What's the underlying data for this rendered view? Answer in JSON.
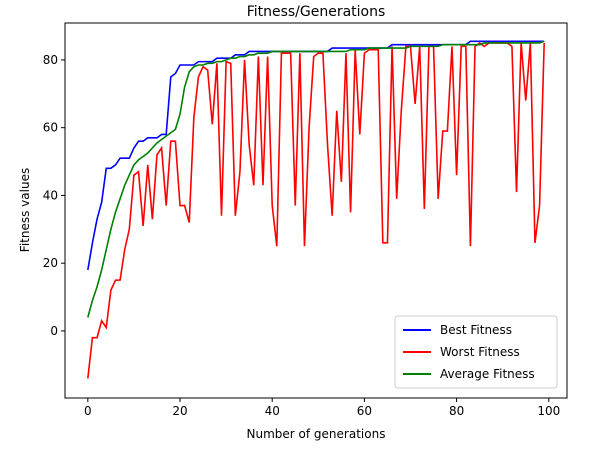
{
  "chart_data": {
    "type": "line",
    "title": "Fitness/Generations",
    "xlabel": "Number of generations",
    "ylabel": "Fitness values",
    "x": [
      0,
      1,
      2,
      3,
      4,
      5,
      6,
      7,
      8,
      9,
      10,
      11,
      12,
      13,
      14,
      15,
      16,
      17,
      18,
      19,
      20,
      21,
      22,
      23,
      24,
      25,
      26,
      27,
      28,
      29,
      30,
      31,
      32,
      33,
      34,
      35,
      36,
      37,
      38,
      39,
      40,
      41,
      42,
      43,
      44,
      45,
      46,
      47,
      48,
      49,
      50,
      51,
      52,
      53,
      54,
      55,
      56,
      57,
      58,
      59,
      60,
      61,
      62,
      63,
      64,
      65,
      66,
      67,
      68,
      69,
      70,
      71,
      72,
      73,
      74,
      75,
      76,
      77,
      78,
      79,
      80,
      81,
      82,
      83,
      84,
      85,
      86,
      87,
      88,
      89,
      90,
      91,
      92,
      93,
      94,
      95,
      96,
      97,
      98,
      99
    ],
    "series": [
      {
        "name": "Best Fitness",
        "color": "#0000ff",
        "values": [
          18,
          26,
          33,
          38,
          48,
          48,
          49,
          51,
          51,
          51,
          54,
          56,
          56,
          57,
          57,
          57,
          58,
          58,
          75,
          76,
          78.5,
          78.5,
          78.5,
          78.5,
          79.5,
          79.5,
          79.5,
          79.5,
          80.5,
          80.5,
          80.5,
          80.5,
          81.5,
          81.5,
          81.5,
          82.5,
          82.5,
          82.5,
          82.5,
          82.5,
          82.5,
          82.5,
          82.5,
          82.5,
          82.5,
          82.5,
          82.5,
          82.5,
          82.5,
          82.5,
          82.5,
          82.5,
          82.5,
          83.5,
          83.5,
          83.5,
          83.5,
          83.5,
          83.5,
          83.5,
          83.5,
          83.5,
          83.5,
          83.5,
          83.5,
          83.5,
          84.5,
          84.5,
          84.5,
          84.5,
          84.5,
          84.5,
          84.5,
          84.5,
          84.5,
          84.5,
          84.5,
          84.5,
          84.5,
          84.5,
          84.5,
          84.5,
          84.5,
          85.5,
          85.5,
          85.5,
          85.5,
          85.5,
          85.5,
          85.5,
          85.5,
          85.5,
          85.5,
          85.5,
          85.5,
          85.5,
          85.5,
          85.5,
          85.5,
          85.5
        ]
      },
      {
        "name": "Worst Fitness",
        "color": "#ff0000",
        "values": [
          -14,
          -2,
          -2,
          3,
          1,
          12,
          15,
          15,
          24,
          30,
          46,
          47,
          31,
          49,
          33,
          52,
          54,
          37,
          56,
          56,
          37,
          37,
          32,
          63,
          75,
          78,
          77,
          61,
          79,
          34,
          79.5,
          79,
          34,
          47,
          80,
          55,
          43,
          81,
          43,
          81,
          37,
          25,
          82,
          82,
          82,
          37,
          82,
          25,
          60,
          81,
          82,
          82,
          55,
          34,
          65,
          44,
          82,
          35,
          83,
          58,
          82,
          83,
          83,
          83,
          26,
          26,
          84,
          39,
          65,
          84,
          84,
          67,
          84,
          36,
          84,
          84,
          39,
          59,
          59,
          84,
          46,
          84,
          84,
          25,
          84,
          85,
          84,
          85,
          85,
          85,
          85,
          85,
          84,
          41,
          85,
          68,
          85,
          26,
          37,
          85
        ]
      },
      {
        "name": "Average Fitness",
        "color": "#008000",
        "values": [
          4,
          9,
          13,
          18,
          24,
          30,
          35,
          39,
          43,
          46,
          49,
          50.5,
          51.5,
          52.5,
          54,
          55.5,
          56.5,
          57.5,
          58.5,
          59.5,
          64,
          72,
          76.5,
          78,
          78.5,
          78.5,
          79,
          79,
          79.5,
          79.5,
          80,
          80.5,
          80.5,
          81,
          81,
          81.5,
          81.5,
          82,
          82,
          82,
          82.5,
          82.5,
          82.5,
          82.5,
          82.5,
          82.5,
          82.5,
          82.5,
          82.5,
          82.5,
          82.5,
          82.5,
          82.5,
          82.5,
          82.5,
          82.5,
          82.5,
          83,
          83,
          83,
          83,
          83.5,
          83.5,
          83.5,
          83.5,
          83.5,
          83.5,
          83.5,
          83.5,
          83.5,
          84,
          84,
          84,
          84,
          84,
          84,
          84,
          84.5,
          84.5,
          84.5,
          84.5,
          84.5,
          84.5,
          84.5,
          84.5,
          84.5,
          85,
          85,
          85,
          85,
          85,
          85,
          85,
          85,
          85,
          85,
          85,
          85,
          85,
          85.5
        ]
      }
    ],
    "xlim": [
      -4.95,
      103.95
    ],
    "ylim": [
      -19.8,
      90.9
    ],
    "xticks": [
      0,
      20,
      40,
      60,
      80,
      100
    ],
    "yticks": [
      0,
      20,
      40,
      60,
      80
    ],
    "legend": "lower right"
  }
}
